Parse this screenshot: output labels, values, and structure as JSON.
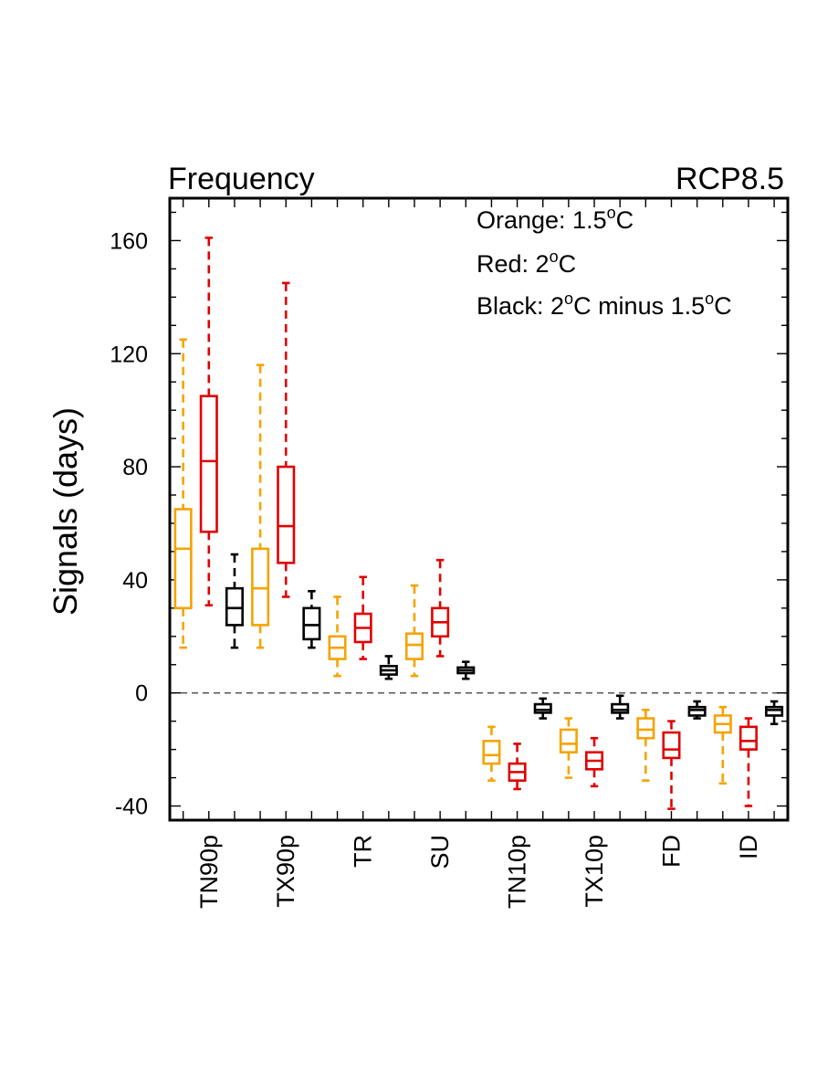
{
  "chart_data": {
    "type": "box",
    "title": "Frequency",
    "subtitle": "RCP8.5",
    "ylabel": "Signals (days)",
    "ylim": [
      -45,
      175
    ],
    "yticks": [
      -40,
      0,
      40,
      80,
      120,
      160
    ],
    "ytick_labels": [
      "-40",
      "0",
      "40",
      "80",
      "120",
      "160"
    ],
    "reference_line": 0,
    "categories": [
      "TN90p",
      "TX90p",
      "TR",
      "SU",
      "TN10p",
      "TX10p",
      "FD",
      "ID"
    ],
    "legend": [
      {
        "text": "Orange: 1.5",
        "sup": "o",
        "tail": "C",
        "color": "#f5a300"
      },
      {
        "text": "Red: 2",
        "sup": "o",
        "tail": "C",
        "color": "#e00000"
      },
      {
        "text": "Black: 2",
        "sup": "o",
        "tail": "C minus 1.5",
        "sup2": "o",
        "tail2": "C",
        "color": "#000000"
      }
    ],
    "series": [
      {
        "name": "Orange: 1.5°C",
        "color": "#f5a300",
        "boxes": [
          {
            "min": 16,
            "q1": 30,
            "median": 51,
            "q3": 65,
            "max": 125
          },
          {
            "min": 16,
            "q1": 24,
            "median": 37,
            "q3": 51,
            "max": 116
          },
          {
            "min": 6,
            "q1": 12,
            "median": 16,
            "q3": 20,
            "max": 34
          },
          {
            "min": 6,
            "q1": 12,
            "median": 17,
            "q3": 21,
            "max": 38
          },
          {
            "min": -31,
            "q1": -25,
            "median": -22,
            "q3": -17,
            "max": -12
          },
          {
            "min": -30,
            "q1": -21,
            "median": -18,
            "q3": -13,
            "max": -9
          },
          {
            "min": -31,
            "q1": -16,
            "median": -13,
            "q3": -9,
            "max": -6
          },
          {
            "min": -32,
            "q1": -14,
            "median": -11,
            "q3": -8,
            "max": -5
          }
        ]
      },
      {
        "name": "Red: 2°C",
        "color": "#e00000",
        "boxes": [
          {
            "min": 31,
            "q1": 57,
            "median": 82,
            "q3": 105,
            "max": 161
          },
          {
            "min": 34,
            "q1": 46,
            "median": 59,
            "q3": 80,
            "max": 145
          },
          {
            "min": 12,
            "q1": 18,
            "median": 23,
            "q3": 28,
            "max": 41
          },
          {
            "min": 13,
            "q1": 20,
            "median": 25,
            "q3": 30,
            "max": 47
          },
          {
            "min": -34,
            "q1": -31,
            "median": -28,
            "q3": -25,
            "max": -18
          },
          {
            "min": -33,
            "q1": -27,
            "median": -24,
            "q3": -21,
            "max": -16
          },
          {
            "min": -41,
            "q1": -23,
            "median": -20,
            "q3": -14,
            "max": -10
          },
          {
            "min": -40,
            "q1": -20,
            "median": -17,
            "q3": -12,
            "max": -9
          }
        ]
      },
      {
        "name": "Black: 2°C minus 1.5°C",
        "color": "#000000",
        "boxes": [
          {
            "min": 16,
            "q1": 24,
            "median": 30,
            "q3": 37,
            "max": 49
          },
          {
            "min": 16,
            "q1": 19,
            "median": 24,
            "q3": 30,
            "max": 36
          },
          {
            "min": 5,
            "q1": 6.5,
            "median": 8,
            "q3": 9.5,
            "max": 13
          },
          {
            "min": 5,
            "q1": 7,
            "median": 8,
            "q3": 9,
            "max": 11
          },
          {
            "min": -9,
            "q1": -7,
            "median": -6,
            "q3": -4,
            "max": -2
          },
          {
            "min": -9,
            "q1": -7,
            "median": -6,
            "q3": -4,
            "max": -1
          },
          {
            "min": -9,
            "q1": -8,
            "median": -6,
            "q3": -5,
            "max": -3
          },
          {
            "min": -11,
            "q1": -8,
            "median": -6,
            "q3": -5,
            "max": -3
          }
        ]
      }
    ]
  }
}
